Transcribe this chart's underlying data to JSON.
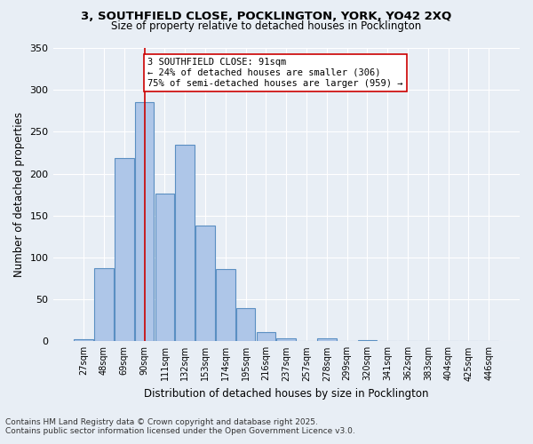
{
  "title_line1": "3, SOUTHFIELD CLOSE, POCKLINGTON, YORK, YO42 2XQ",
  "title_line2": "Size of property relative to detached houses in Pocklington",
  "xlabel": "Distribution of detached houses by size in Pocklington",
  "ylabel": "Number of detached properties",
  "bins": [
    "27sqm",
    "48sqm",
    "69sqm",
    "90sqm",
    "111sqm",
    "132sqm",
    "153sqm",
    "174sqm",
    "195sqm",
    "216sqm",
    "237sqm",
    "257sqm",
    "278sqm",
    "299sqm",
    "320sqm",
    "341sqm",
    "362sqm",
    "383sqm",
    "404sqm",
    "425sqm",
    "446sqm"
  ],
  "values": [
    2,
    87,
    219,
    285,
    176,
    234,
    138,
    86,
    40,
    11,
    4,
    0,
    3,
    0,
    1,
    0,
    0,
    0,
    0,
    0,
    0
  ],
  "bar_color": "#aec6e8",
  "bar_edge_color": "#5a8fc2",
  "vline_x": 3,
  "vline_color": "#cc0000",
  "annotation_text": "3 SOUTHFIELD CLOSE: 91sqm\n← 24% of detached houses are smaller (306)\n75% of semi-detached houses are larger (959) →",
  "annotation_box_color": "white",
  "annotation_box_edge": "#cc0000",
  "background_color": "#e8eef5",
  "grid_color": "white",
  "ylim": [
    0,
    350
  ],
  "yticks": [
    0,
    50,
    100,
    150,
    200,
    250,
    300,
    350
  ],
  "footer_line1": "Contains HM Land Registry data © Crown copyright and database right 2025.",
  "footer_line2": "Contains public sector information licensed under the Open Government Licence v3.0."
}
